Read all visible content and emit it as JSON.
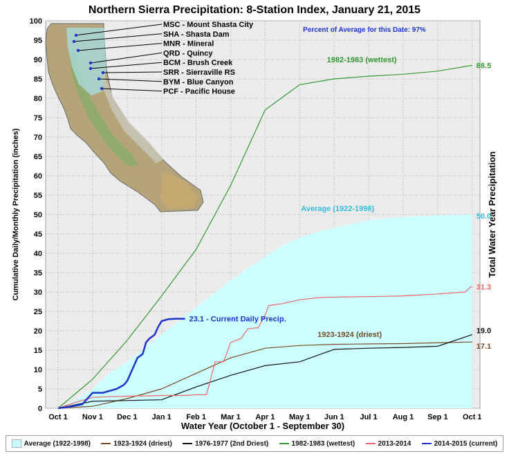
{
  "chart_data": {
    "type": "line",
    "title": "Northern Sierra Precipitation: 8-Station Index, January 21, 2015",
    "xlabel": "Water Year (October 1 - September 30)",
    "ylabel": "Cumulative Daily/Monthly Precipitation (inches)",
    "y2label": "Total Water Year Precipitation",
    "ylim": [
      0,
      100
    ],
    "yticks": [
      "0",
      "5",
      "10",
      "15",
      "20",
      "25",
      "30",
      "35",
      "40",
      "45",
      "50",
      "55",
      "60",
      "65",
      "70",
      "75",
      "80",
      "85",
      "90",
      "95",
      "100"
    ],
    "xticks": [
      "Oct 1",
      "Nov 1",
      "Dec 1",
      "Jan 1",
      "Feb 1",
      "Mar 1",
      "Apr 1",
      "May 1",
      "Jun 1",
      "Jul 1",
      "Aug 1",
      "Sep 1",
      "Oct 1"
    ],
    "grid": true,
    "annotation_percent": "Percent of Average for this Date: 97%",
    "series": [
      {
        "name": "Average (1922-1998)",
        "key": "avg",
        "color": "#33bbdd",
        "fill": "#ccffff",
        "label": "Average (1922-1998)",
        "end_label": "50.0",
        "x": [
          0,
          0.5,
          1,
          1.5,
          2,
          2.5,
          3,
          3.5,
          4,
          4.5,
          5,
          5.5,
          6,
          6.5,
          7,
          7.5,
          8,
          8.5,
          9,
          9.5,
          10,
          10.5,
          11,
          11.5,
          12
        ],
        "y": [
          0,
          2,
          5,
          9,
          12,
          15.5,
          19,
          22.5,
          26,
          29.5,
          33,
          36,
          39,
          42,
          44,
          45.5,
          46.5,
          47.5,
          48.5,
          49,
          49.3,
          49.6,
          49.8,
          49.9,
          50
        ]
      },
      {
        "name": "1923-1924 (driest)",
        "key": "driest",
        "color": "#7a4a22",
        "label": "1923-1924 (driest)",
        "end_label": "17.1",
        "x": [
          0,
          1,
          2,
          3,
          4,
          5,
          6,
          7,
          8,
          9,
          10,
          11,
          12
        ],
        "y": [
          0,
          0.5,
          2.5,
          5,
          9,
          13,
          15.5,
          16.2,
          16.5,
          16.6,
          16.7,
          16.9,
          17.1
        ]
      },
      {
        "name": "1976-1977 (2nd Driest)",
        "key": "second_driest",
        "color": "#111111",
        "end_label": "19.0",
        "x": [
          0,
          1,
          2,
          3,
          4,
          5,
          6,
          7,
          8,
          9,
          10,
          11,
          12
        ],
        "y": [
          0,
          1.8,
          2,
          2.2,
          5.5,
          8.5,
          11,
          12,
          15.2,
          15.5,
          15.7,
          16,
          19
        ]
      },
      {
        "name": "1982-1983 (wettest)",
        "key": "wettest",
        "color": "#339933",
        "label": "1982-1983 (wettest)",
        "end_label": "88.5",
        "x": [
          0,
          1,
          2,
          3,
          4,
          5,
          6,
          7,
          8,
          9,
          10,
          11,
          12
        ],
        "y": [
          0,
          7.5,
          17.5,
          29,
          41,
          57.5,
          77,
          83.5,
          85,
          85.7,
          86.2,
          87,
          88.5
        ]
      },
      {
        "name": "2013-2014",
        "key": "prev",
        "color": "#ee6666",
        "end_label": "31.3",
        "x": [
          0,
          0.5,
          1,
          1.5,
          2,
          2.3,
          2.7,
          3,
          3.4,
          3.6,
          3.85,
          4.0,
          4.3,
          4.55,
          4.8,
          5.0,
          5.3,
          5.5,
          5.8,
          6.0,
          6.1,
          6.5,
          7,
          7.5,
          8,
          9,
          10,
          11,
          11.8,
          11.95,
          12
        ],
        "y": [
          0,
          1.5,
          2.8,
          3,
          3.1,
          3.2,
          3.2,
          3.3,
          3.3,
          3.3,
          3.4,
          3.5,
          3.5,
          12,
          12,
          17,
          18,
          20.5,
          20.8,
          24,
          26.5,
          27,
          28,
          28.5,
          28.7,
          28.8,
          29,
          29.5,
          30,
          31.3,
          31.3
        ]
      },
      {
        "name": "2014-2015 (current)",
        "key": "current",
        "color": "#1f33cc",
        "label": "23.1 -  Current Daily Precip.",
        "x": [
          0,
          0.4,
          0.7,
          0.8,
          0.9,
          1.0,
          1.3,
          1.5,
          1.7,
          1.9,
          2.0,
          2.1,
          2.2,
          2.3,
          2.45,
          2.55,
          2.65,
          2.8,
          2.9,
          3.0,
          3.2,
          3.4,
          3.68
        ],
        "y": [
          0,
          0.5,
          1,
          2,
          3,
          4,
          4,
          4.5,
          5,
          6,
          7,
          9,
          11,
          13,
          14,
          17,
          18,
          19,
          21,
          22.5,
          23,
          23.1,
          23.1
        ]
      }
    ],
    "stations": [
      {
        "code": "MSC",
        "label": "MSC - Mount Shasta City"
      },
      {
        "code": "SHA",
        "label": "SHA - Shasta Dam"
      },
      {
        "code": "MNR",
        "label": "MNR - Mineral"
      },
      {
        "code": "QRD",
        "label": "QRD - Quincy"
      },
      {
        "code": "BCM",
        "label": "BCM - Brush Creek"
      },
      {
        "code": "SRR",
        "label": "SRR - Sierraville RS"
      },
      {
        "code": "BYM",
        "label": "BYM - Blue Canyon"
      },
      {
        "code": "PCF",
        "label": "PCF - Pacific House"
      }
    ]
  },
  "legend": [
    {
      "name": "Average (1922-1998)",
      "kind": "box",
      "color": "#ccffff"
    },
    {
      "name": "1923-1924 (driest)",
      "kind": "line",
      "color": "#7a4a22"
    },
    {
      "name": "1976-1977 (2nd Driest)",
      "kind": "line",
      "color": "#111111"
    },
    {
      "name": "1982-1983 (wettest)",
      "kind": "line",
      "color": "#339933"
    },
    {
      "name": "2013-2014",
      "kind": "line",
      "color": "#ee6666"
    },
    {
      "name": "2014-2015 (current)",
      "kind": "line",
      "color": "#1f33cc"
    }
  ]
}
